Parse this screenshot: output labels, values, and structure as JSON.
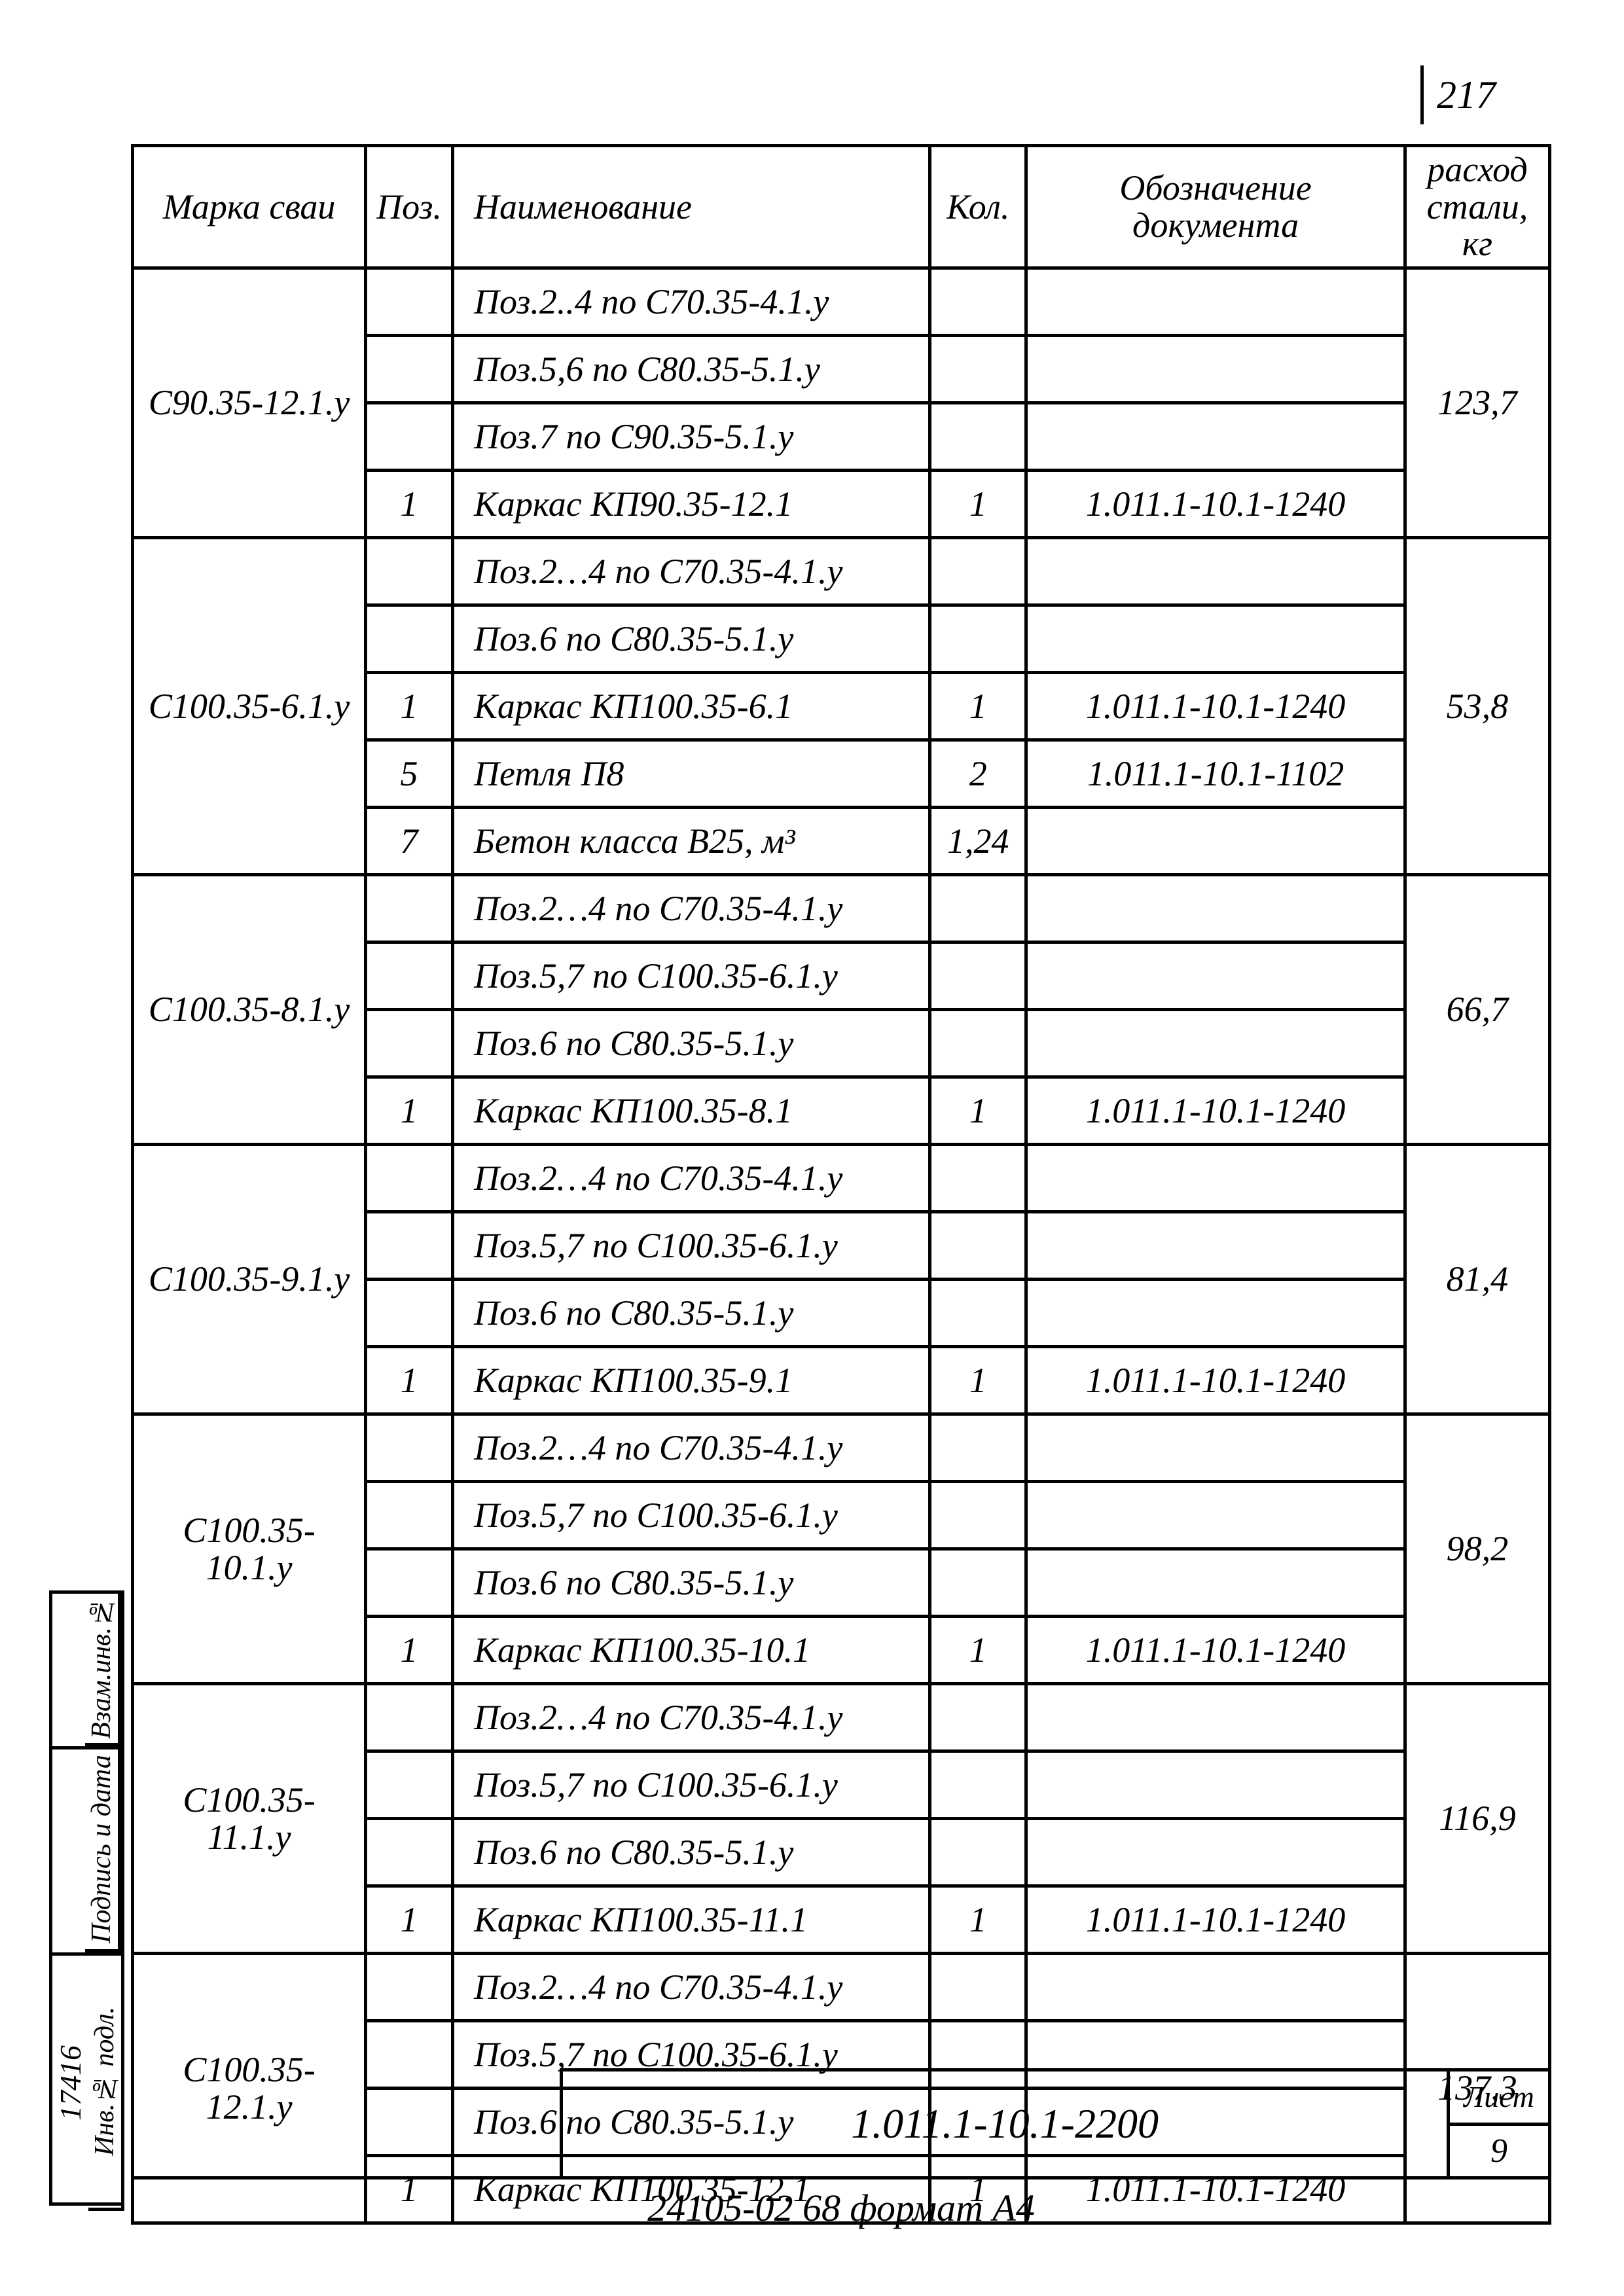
{
  "page_number": "217",
  "headers": {
    "marka": "Марка сваи",
    "poz": "Поз.",
    "naim": "Наименование",
    "kol": "Кол.",
    "oboz": "Обозначение документа",
    "ras": "расход стали, кг"
  },
  "groups": [
    {
      "marka": "С90.35-12.1.у",
      "ras": "123,7",
      "rows": [
        {
          "poz": "",
          "naim": "Поз.2..4 по С70.35-4.1.у",
          "kol": "",
          "oboz": ""
        },
        {
          "poz": "",
          "naim": "Поз.5,6 по С80.35-5.1.у",
          "kol": "",
          "oboz": ""
        },
        {
          "poz": "",
          "naim": "Поз.7 по С90.35-5.1.у",
          "kol": "",
          "oboz": ""
        },
        {
          "poz": "1",
          "naim": "Каркас КП90.35-12.1",
          "kol": "1",
          "oboz": "1.011.1-10.1-1240"
        }
      ]
    },
    {
      "marka": "С100.35-6.1.у",
      "ras": "53,8",
      "rows": [
        {
          "poz": "",
          "naim": "Поз.2…4 по С70.35-4.1.у",
          "kol": "",
          "oboz": ""
        },
        {
          "poz": "",
          "naim": "Поз.6 по С80.35-5.1.у",
          "kol": "",
          "oboz": ""
        },
        {
          "poz": "1",
          "naim": "Каркас КП100.35-6.1",
          "kol": "1",
          "oboz": "1.011.1-10.1-1240"
        },
        {
          "poz": "5",
          "naim": "Петля П8",
          "kol": "2",
          "oboz": "1.011.1-10.1-1102"
        },
        {
          "poz": "7",
          "naim": "Бетон класса В25, м³",
          "kol": "1,24",
          "oboz": ""
        }
      ]
    },
    {
      "marka": "С100.35-8.1.у",
      "ras": "66,7",
      "rows": [
        {
          "poz": "",
          "naim": "Поз.2…4 по С70.35-4.1.у",
          "kol": "",
          "oboz": ""
        },
        {
          "poz": "",
          "naim": "Поз.5,7 по С100.35-6.1.у",
          "kol": "",
          "oboz": ""
        },
        {
          "poz": "",
          "naim": "Поз.6 по С80.35-5.1.у",
          "kol": "",
          "oboz": ""
        },
        {
          "poz": "1",
          "naim": "Каркас КП100.35-8.1",
          "kol": "1",
          "oboz": "1.011.1-10.1-1240"
        }
      ]
    },
    {
      "marka": "С100.35-9.1.у",
      "ras": "81,4",
      "rows": [
        {
          "poz": "",
          "naim": "Поз.2…4 по С70.35-4.1.у",
          "kol": "",
          "oboz": ""
        },
        {
          "poz": "",
          "naim": "Поз.5,7 по С100.35-6.1.у",
          "kol": "",
          "oboz": ""
        },
        {
          "poz": "",
          "naim": "Поз.6 по С80.35-5.1.у",
          "kol": "",
          "oboz": ""
        },
        {
          "poz": "1",
          "naim": "Каркас КП100.35-9.1",
          "kol": "1",
          "oboz": "1.011.1-10.1-1240"
        }
      ]
    },
    {
      "marka": "С100.35-10.1.у",
      "ras": "98,2",
      "rows": [
        {
          "poz": "",
          "naim": "Поз.2…4 по С70.35-4.1.у",
          "kol": "",
          "oboz": ""
        },
        {
          "poz": "",
          "naim": "Поз.5,7 по С100.35-6.1.у",
          "kol": "",
          "oboz": ""
        },
        {
          "poz": "",
          "naim": "Поз.6 по С80.35-5.1.у",
          "kol": "",
          "oboz": ""
        },
        {
          "poz": "1",
          "naim": "Каркас КП100.35-10.1",
          "kol": "1",
          "oboz": "1.011.1-10.1-1240"
        }
      ]
    },
    {
      "marka": "С100.35-11.1.у",
      "ras": "116,9",
      "rows": [
        {
          "poz": "",
          "naim": "Поз.2…4 по С70.35-4.1.у",
          "kol": "",
          "oboz": ""
        },
        {
          "poz": "",
          "naim": "Поз.5,7 по С100.35-6.1.у",
          "kol": "",
          "oboz": ""
        },
        {
          "poz": "",
          "naim": "Поз.6 по С80.35-5.1.у",
          "kol": "",
          "oboz": ""
        },
        {
          "poz": "1",
          "naim": "Каркас КП100.35-11.1",
          "kol": "1",
          "oboz": "1.011.1-10.1-1240"
        }
      ]
    },
    {
      "marka": "С100.35-12.1.у",
      "ras": "137,3",
      "rows": [
        {
          "poz": "",
          "naim": "Поз.2…4 по С70.35-4.1.у",
          "kol": "",
          "oboz": ""
        },
        {
          "poz": "",
          "naim": "Поз.5,7 по С100.35-6.1.у",
          "kol": "",
          "oboz": ""
        },
        {
          "poz": "",
          "naim": "Поз.6 по С80.35-5.1.у",
          "kol": "",
          "oboz": ""
        },
        {
          "poz": "1",
          "naim": "Каркас КП100.35-12.1",
          "kol": "1",
          "oboz": "1.011.1-10.1-1240"
        }
      ]
    }
  ],
  "sidestrip": {
    "c1": "Взам.инв.№",
    "c2": "Подпись и дата",
    "c3": "Инв.№ подл.",
    "inv": "17416"
  },
  "titleblock": {
    "code": "1.011.1-10.1-2200",
    "sheet_label": "Лист",
    "sheet_num": "9"
  },
  "footer": "24105-02   68   формат А4"
}
